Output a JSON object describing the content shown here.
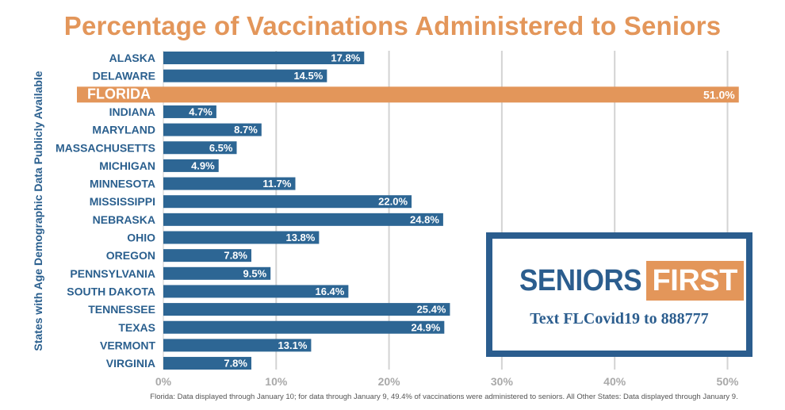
{
  "chart_data": {
    "type": "bar",
    "orientation": "horizontal",
    "title": "Percentage of Vaccinations Administered to Seniors",
    "ylabel": "States with Age Demographic Data Publicly Available",
    "xlabel": "",
    "categories": [
      "ALASKA",
      "DELAWARE",
      "FLORIDA",
      "INDIANA",
      "MARYLAND",
      "MASSACHUSETTS",
      "MICHIGAN",
      "MINNESOTA",
      "MISSISSIPPI",
      "NEBRASKA",
      "OHIO",
      "OREGON",
      "PENNSYLVANIA",
      "SOUTH DAKOTA",
      "TENNESSEE",
      "TEXAS",
      "VERMONT",
      "VIRGINIA"
    ],
    "values": [
      17.8,
      14.5,
      51.0,
      4.7,
      8.7,
      6.5,
      4.9,
      11.7,
      22.0,
      24.8,
      13.8,
      7.8,
      9.5,
      16.4,
      25.4,
      24.9,
      13.1,
      7.8
    ],
    "value_labels": [
      "17.8%",
      "14.5%",
      "51.0%",
      "4.7%",
      "8.7%",
      "6.5%",
      "4.9%",
      "11.7%",
      "22.0%",
      "24.8%",
      "13.8%",
      "7.8%",
      "9.5%",
      "16.4%",
      "25.4%",
      "24.9%",
      "13.1%",
      "7.8%"
    ],
    "highlight": "FLORIDA",
    "xlim": [
      0,
      51
    ],
    "xticks": [
      0,
      10,
      20,
      30,
      40,
      50
    ],
    "xtick_labels": [
      "0%",
      "10%",
      "20%",
      "30%",
      "40%",
      "50%"
    ],
    "grid": "vertical",
    "colors": {
      "bar": "#2d6694",
      "highlight": "#e3965a",
      "category_text": "#2a5f8e",
      "grid": "#d3d3d3"
    },
    "footnote": "Florida: Data displayed through January 10; for data through January 9, 49.4% of vaccinations were administered to seniors. All Other States: Data displayed through January 9."
  },
  "promo": {
    "brand_part1": "SENIORS",
    "brand_part2": "FIRST",
    "text": "Text FLCovid19 to 888777"
  }
}
